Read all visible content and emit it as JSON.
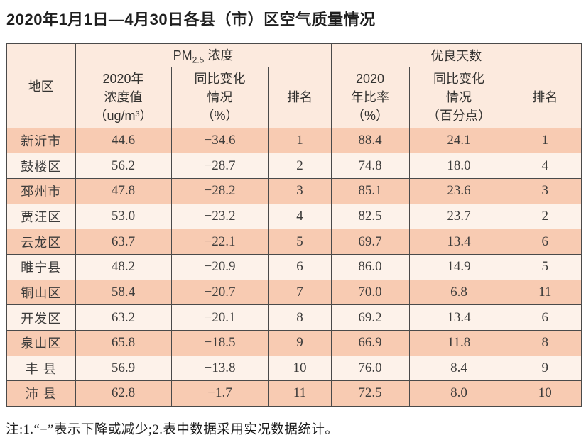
{
  "title": "2020年1月1日—4月30日各县（市）区空气质量情况",
  "table": {
    "header": {
      "region": "地区",
      "pm_group": {
        "prefix": "PM",
        "sub": "2.5",
        "suffix": " 浓度"
      },
      "good_group": "优良天数",
      "sub_headers": {
        "pm_value": "2020年\n浓度值\n（ug/m³）",
        "pm_change": "同比变化\n情况\n（%）",
        "pm_rank": "排名",
        "good_ratio": "2020\n年比率\n（%）",
        "good_change": "同比变化\n情况\n（百分点）",
        "good_rank": "排名"
      }
    },
    "column_order": [
      "region",
      "pm_value",
      "pm_change",
      "pm_rank",
      "good_ratio",
      "good_change",
      "good_rank"
    ],
    "rows": [
      {
        "region": "新沂市",
        "pm_value": "44.6",
        "pm_change": "−34.6",
        "pm_rank": "1",
        "good_ratio": "88.4",
        "good_change": "24.1",
        "good_rank": "1"
      },
      {
        "region": "鼓楼区",
        "pm_value": "56.2",
        "pm_change": "−28.7",
        "pm_rank": "2",
        "good_ratio": "74.8",
        "good_change": "18.0",
        "good_rank": "4"
      },
      {
        "region": "邳州市",
        "pm_value": "47.8",
        "pm_change": "−28.2",
        "pm_rank": "3",
        "good_ratio": "85.1",
        "good_change": "23.6",
        "good_rank": "3"
      },
      {
        "region": "贾汪区",
        "pm_value": "53.0",
        "pm_change": "−23.2",
        "pm_rank": "4",
        "good_ratio": "82.5",
        "good_change": "23.7",
        "good_rank": "2"
      },
      {
        "region": "云龙区",
        "pm_value": "63.7",
        "pm_change": "−22.1",
        "pm_rank": "5",
        "good_ratio": "69.7",
        "good_change": "13.4",
        "good_rank": "6"
      },
      {
        "region": "睢宁县",
        "pm_value": "48.2",
        "pm_change": "−20.9",
        "pm_rank": "6",
        "good_ratio": "86.0",
        "good_change": "14.9",
        "good_rank": "5"
      },
      {
        "region": "铜山区",
        "pm_value": "58.4",
        "pm_change": "−20.7",
        "pm_rank": "7",
        "good_ratio": "70.0",
        "good_change": "6.8",
        "good_rank": "11"
      },
      {
        "region": "开发区",
        "pm_value": "63.2",
        "pm_change": "−20.1",
        "pm_rank": "8",
        "good_ratio": "69.2",
        "good_change": "13.4",
        "good_rank": "6"
      },
      {
        "region": "泉山区",
        "pm_value": "65.8",
        "pm_change": "−18.5",
        "pm_rank": "9",
        "good_ratio": "66.9",
        "good_change": "11.8",
        "good_rank": "8"
      },
      {
        "region": "丰 县",
        "pm_value": "56.9",
        "pm_change": "−13.8",
        "pm_rank": "10",
        "good_ratio": "76.0",
        "good_change": "8.4",
        "good_rank": "9"
      },
      {
        "region": "沛 县",
        "pm_value": "62.8",
        "pm_change": "−1.7",
        "pm_rank": "11",
        "good_ratio": "72.5",
        "good_change": "8.0",
        "good_rank": "10"
      }
    ]
  },
  "note": "注:1.“−”表示下降或减少;2.表中数据采用实况数据统计。",
  "colors": {
    "row_odd": "#f8cbb2",
    "row_even": "#fdf2ea",
    "header_bg": "#fceade",
    "border": "#4a4a4a",
    "text": "#3d3c3b"
  }
}
